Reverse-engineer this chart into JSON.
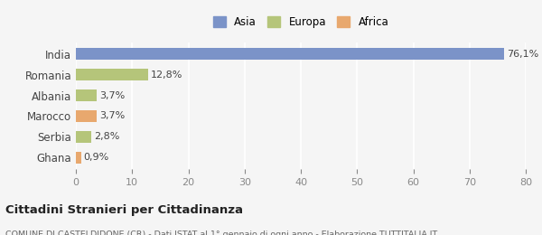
{
  "categories": [
    "India",
    "Romania",
    "Albania",
    "Marocco",
    "Serbia",
    "Ghana"
  ],
  "values": [
    76.1,
    12.8,
    3.7,
    3.7,
    2.8,
    0.9
  ],
  "labels": [
    "76,1%",
    "12,8%",
    "3,7%",
    "3,7%",
    "2,8%",
    "0,9%"
  ],
  "colors": [
    "#7b93c8",
    "#b5c57a",
    "#b5c57a",
    "#e8a86e",
    "#b5c57a",
    "#e8a86e"
  ],
  "legend_items": [
    {
      "label": "Asia",
      "color": "#7b93c8"
    },
    {
      "label": "Europa",
      "color": "#b5c57a"
    },
    {
      "label": "Africa",
      "color": "#e8a86e"
    }
  ],
  "xlim": [
    0,
    80
  ],
  "xticks": [
    0,
    10,
    20,
    30,
    40,
    50,
    60,
    70,
    80
  ],
  "title": "Cittadini Stranieri per Cittadinanza",
  "subtitle": "COMUNE DI CASTELDIDONE (CR) - Dati ISTAT al 1° gennaio di ogni anno - Elaborazione TUTTITALIA.IT",
  "background_color": "#f5f5f5",
  "grid_color": "#ffffff",
  "bar_height": 0.55
}
